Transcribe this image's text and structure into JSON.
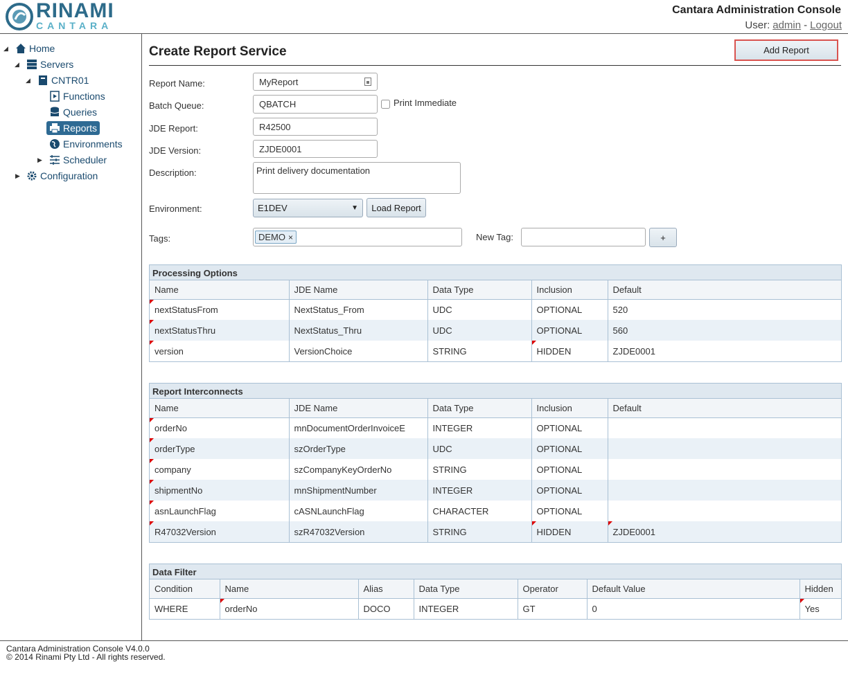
{
  "header": {
    "brand": "RINAMI",
    "subbrand": "CANTARA",
    "title": "Cantara Administration Console",
    "user_label": "User:",
    "user": "admin",
    "separator": "-",
    "logout": "Logout"
  },
  "nav": {
    "home": "Home",
    "servers": "Servers",
    "server": "CNTR01",
    "functions": "Functions",
    "queries": "Queries",
    "reports": "Reports",
    "environments": "Environments",
    "scheduler": "Scheduler",
    "configuration": "Configuration"
  },
  "form": {
    "title": "Create Report Service",
    "submit": "Add Report",
    "report_name": {
      "label": "Report Name:",
      "value": "MyReport"
    },
    "batch_queue": {
      "label": "Batch Queue:",
      "value": "QBATCH"
    },
    "print_immediate": {
      "label": "Print Immediate",
      "checked": false
    },
    "jde_report": {
      "label": "JDE Report:",
      "value": "R42500"
    },
    "jde_version": {
      "label": "JDE Version:",
      "value": "ZJDE0001"
    },
    "description": {
      "label": "Description:",
      "value": "Print delivery documentation"
    },
    "environment": {
      "label": "Environment:",
      "value": "E1DEV"
    },
    "load_button": "Load Report",
    "tags": {
      "label": "Tags:",
      "values": [
        "DEMO"
      ]
    },
    "new_tag": {
      "label": "New Tag:"
    },
    "add_tag_button": "+"
  },
  "tables": [
    {
      "title": "Processing Options",
      "columns": [
        "Name",
        "JDE Name",
        "Data Type",
        "Inclusion",
        "Default"
      ],
      "rows": [
        [
          "nextStatusFrom",
          "NextStatus_From",
          "UDC",
          "OPTIONAL",
          "520"
        ],
        [
          "nextStatusThru",
          "NextStatus_Thru",
          "UDC",
          "OPTIONAL",
          "560"
        ],
        [
          "version",
          "VersionChoice",
          "STRING",
          "HIDDEN",
          "ZJDE0001"
        ]
      ],
      "flagged": [
        [
          0,
          0
        ],
        [
          1,
          0
        ],
        [
          2,
          0
        ],
        [
          2,
          3
        ]
      ]
    },
    {
      "title": "Report Interconnects",
      "columns": [
        "Name",
        "JDE Name",
        "Data Type",
        "Inclusion",
        "Default"
      ],
      "rows": [
        [
          "orderNo",
          "mnDocumentOrderInvoiceE",
          "INTEGER",
          "OPTIONAL",
          null
        ],
        [
          "orderType",
          "szOrderType",
          "UDC",
          "OPTIONAL",
          null
        ],
        [
          "company",
          "szCompanyKeyOrderNo",
          "STRING",
          "OPTIONAL",
          null
        ],
        [
          "shipmentNo",
          "mnShipmentNumber",
          "INTEGER",
          "OPTIONAL",
          null
        ],
        [
          "asnLaunchFlag",
          "cASNLaunchFlag",
          "CHARACTER",
          "OPTIONAL",
          null
        ],
        [
          "R47032Version",
          "szR47032Version",
          "STRING",
          "HIDDEN",
          "ZJDE0001"
        ]
      ],
      "flagged": [
        [
          0,
          0
        ],
        [
          1,
          0
        ],
        [
          2,
          0
        ],
        [
          3,
          0
        ],
        [
          4,
          0
        ],
        [
          5,
          0
        ],
        [
          5,
          3
        ],
        [
          5,
          4
        ]
      ]
    },
    {
      "title": "Data Filter",
      "columns": [
        "Condition",
        "Name",
        "Alias",
        "Data Type",
        "Operator",
        "Default Value",
        "Hidden"
      ],
      "rows": [
        [
          "WHERE",
          "orderNo",
          "DOCO",
          "INTEGER",
          "GT",
          "0",
          "Yes"
        ]
      ],
      "flagged": [
        [
          0,
          1
        ],
        [
          0,
          6
        ]
      ]
    }
  ],
  "footer": {
    "version": "Cantara Administration Console V4.0.0",
    "copyright": "© 2014 Rinami Pty Ltd - All rights reserved."
  }
}
